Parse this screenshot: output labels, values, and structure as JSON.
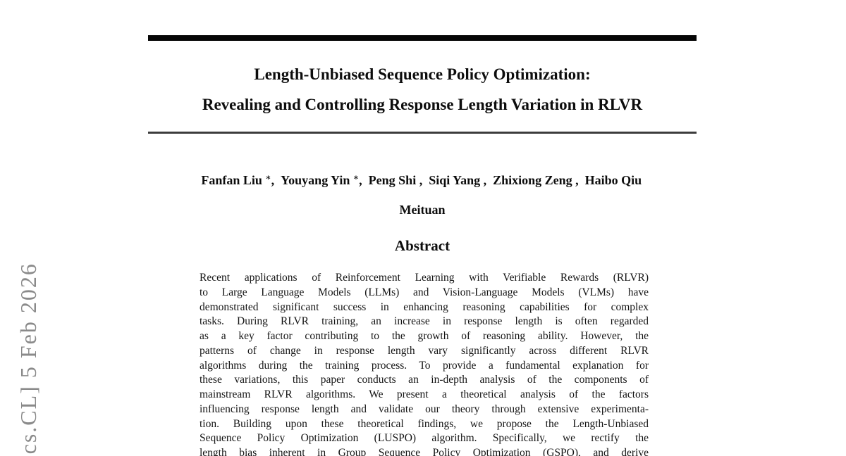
{
  "page": {
    "background_color": "#ffffff",
    "text_color": "#111111"
  },
  "arxiv_stamp": {
    "visible_text": "[cs.CL] 5 Feb 2026",
    "color": "#8a8a8a"
  },
  "paper": {
    "title_line1": "Length-Unbiased Sequence Policy Optimization:",
    "title_line2": "Revealing and Controlling Response Length Variation in RLVR",
    "authors": [
      {
        "name": "Fanfan Liu",
        "mark": "∗"
      },
      {
        "name": "Youyang Yin",
        "mark": "∗"
      },
      {
        "name": "Peng Shi",
        "mark": ""
      },
      {
        "name": "Siqi Yang",
        "mark": ""
      },
      {
        "name": "Zhixiong Zeng",
        "mark": ""
      },
      {
        "name": "Haibo Qiu",
        "mark": ""
      }
    ],
    "affiliation": "Meituan",
    "abstract": {
      "heading": "Abstract",
      "lines": [
        "Recent applications of Reinforcement Learning with Verifiable Rewards (RLVR)",
        "to Large Language Models (LLMs) and Vision-Language Models (VLMs) have",
        "demonstrated significant success in enhancing reasoning capabilities for complex",
        "tasks. During RLVR training, an increase in response length is often regarded",
        "as a key factor contributing to the growth of reasoning ability. However, the",
        "patterns of change in response length vary significantly across different RLVR",
        "algorithms during the training process. To provide a fundamental explanation for",
        "these variations, this paper conducts an in-depth analysis of the components of",
        "mainstream RLVR algorithms. We present a theoretical analysis of the factors",
        "influencing response length and validate our theory through extensive experimenta-",
        "tion. Building upon these theoretical findings, we propose the Length-Unbiased",
        "Sequence Policy Optimization (LUSPO) algorithm. Specifically, we rectify the",
        "length bias inherent in Group Sequence Policy Optimization (GSPO), and derive"
      ]
    }
  }
}
